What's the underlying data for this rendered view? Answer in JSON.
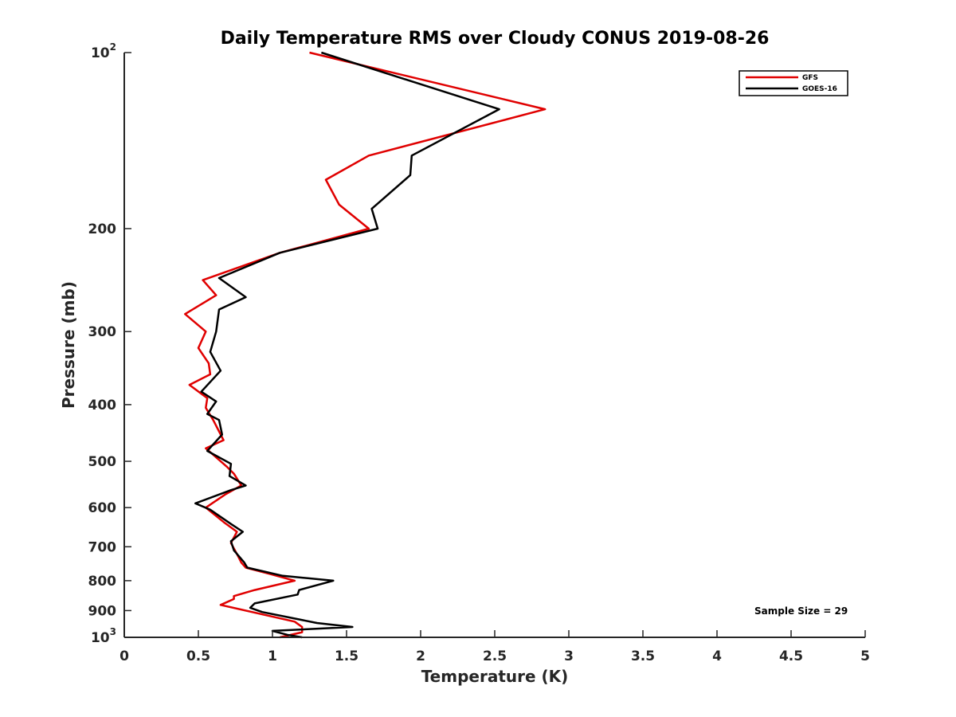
{
  "chart_data": {
    "type": "line",
    "title": "Daily Temperature RMS over Cloudy CONUS 2019-08-26",
    "xlabel": "Temperature (K)",
    "ylabel": "Pressure (mb)",
    "xlim": [
      0,
      5
    ],
    "ylim": [
      1000,
      100
    ],
    "y_scale": "log",
    "y_direction": "reversed",
    "grid": false,
    "legend_position": "top-right",
    "annotation": "Sample Size = 29",
    "x_ticks": [
      {
        "value": 0,
        "label": "0"
      },
      {
        "value": 0.5,
        "label": "0.5"
      },
      {
        "value": 1,
        "label": "1"
      },
      {
        "value": 1.5,
        "label": "1.5"
      },
      {
        "value": 2,
        "label": "2"
      },
      {
        "value": 2.5,
        "label": "2.5"
      },
      {
        "value": 3,
        "label": "3"
      },
      {
        "value": 3.5,
        "label": "3.5"
      },
      {
        "value": 4,
        "label": "4"
      },
      {
        "value": 4.5,
        "label": "4.5"
      },
      {
        "value": 5,
        "label": "5"
      }
    ],
    "y_ticks": [
      {
        "value": 100,
        "label": "10",
        "exp": "2"
      },
      {
        "value": 200,
        "label": "200",
        "exp": ""
      },
      {
        "value": 300,
        "label": "300",
        "exp": ""
      },
      {
        "value": 400,
        "label": "400",
        "exp": ""
      },
      {
        "value": 500,
        "label": "500",
        "exp": ""
      },
      {
        "value": 600,
        "label": "600",
        "exp": ""
      },
      {
        "value": 700,
        "label": "700",
        "exp": ""
      },
      {
        "value": 800,
        "label": "800",
        "exp": ""
      },
      {
        "value": 900,
        "label": "900",
        "exp": ""
      },
      {
        "value": 1000,
        "label": "10",
        "exp": "3"
      }
    ],
    "series": [
      {
        "name": "GFS",
        "color": "#e00000",
        "points": [
          [
            1.05,
            1000
          ],
          [
            1.2,
            980
          ],
          [
            1.2,
            960
          ],
          [
            1.15,
            940
          ],
          [
            0.65,
            880
          ],
          [
            0.74,
            860
          ],
          [
            0.74,
            850
          ],
          [
            0.88,
            830
          ],
          [
            1.15,
            800
          ],
          [
            0.99,
            780
          ],
          [
            0.82,
            760
          ],
          [
            0.79,
            745
          ],
          [
            0.76,
            720
          ],
          [
            0.72,
            690
          ],
          [
            0.76,
            660
          ],
          [
            0.67,
            635
          ],
          [
            0.55,
            600
          ],
          [
            0.68,
            570
          ],
          [
            0.79,
            550
          ],
          [
            0.74,
            525
          ],
          [
            0.69,
            510
          ],
          [
            0.55,
            475
          ],
          [
            0.67,
            460
          ],
          [
            0.6,
            425
          ],
          [
            0.55,
            405
          ],
          [
            0.56,
            390
          ],
          [
            0.44,
            370
          ],
          [
            0.58,
            355
          ],
          [
            0.57,
            340
          ],
          [
            0.5,
            320
          ],
          [
            0.55,
            300
          ],
          [
            0.41,
            280
          ],
          [
            0.62,
            260
          ],
          [
            0.53,
            245
          ],
          [
            1.05,
            220
          ],
          [
            1.65,
            200
          ],
          [
            1.45,
            182
          ],
          [
            1.36,
            165
          ],
          [
            1.65,
            150
          ],
          [
            2.84,
            125
          ],
          [
            1.25,
            100
          ]
        ]
      },
      {
        "name": "GOES-16",
        "color": "#000000",
        "points": [
          [
            1.2,
            1000
          ],
          [
            1.1,
            990
          ],
          [
            1.0,
            975
          ],
          [
            1.54,
            960
          ],
          [
            1.3,
            945
          ],
          [
            0.93,
            905
          ],
          [
            0.85,
            890
          ],
          [
            0.88,
            875
          ],
          [
            1.17,
            845
          ],
          [
            1.18,
            830
          ],
          [
            1.41,
            800
          ],
          [
            1.07,
            785
          ],
          [
            0.83,
            760
          ],
          [
            0.81,
            745
          ],
          [
            0.74,
            710
          ],
          [
            0.72,
            685
          ],
          [
            0.8,
            660
          ],
          [
            0.72,
            640
          ],
          [
            0.58,
            605
          ],
          [
            0.48,
            590
          ],
          [
            0.72,
            560
          ],
          [
            0.82,
            550
          ],
          [
            0.71,
            530
          ],
          [
            0.72,
            505
          ],
          [
            0.56,
            480
          ],
          [
            0.66,
            450
          ],
          [
            0.64,
            425
          ],
          [
            0.56,
            415
          ],
          [
            0.62,
            395
          ],
          [
            0.52,
            380
          ],
          [
            0.65,
            350
          ],
          [
            0.58,
            325
          ],
          [
            0.62,
            300
          ],
          [
            0.64,
            275
          ],
          [
            0.82,
            262
          ],
          [
            0.64,
            243
          ],
          [
            1.05,
            220
          ],
          [
            1.71,
            200
          ],
          [
            1.67,
            185
          ],
          [
            1.93,
            162
          ],
          [
            1.94,
            150
          ],
          [
            2.53,
            125
          ],
          [
            1.33,
            100
          ]
        ]
      }
    ]
  }
}
